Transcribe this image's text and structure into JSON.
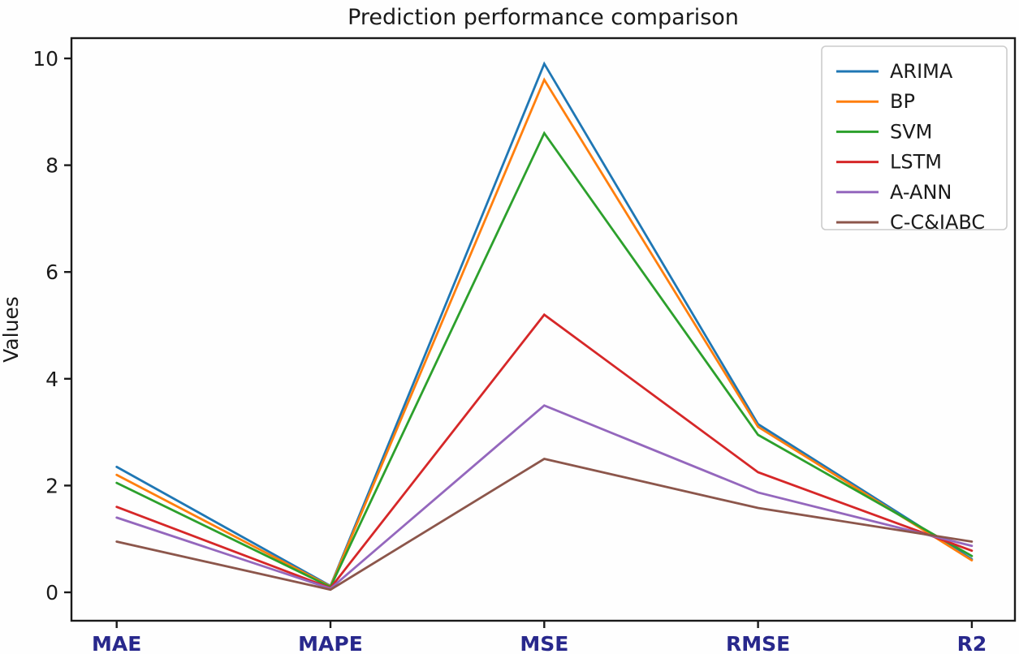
{
  "figure": {
    "title": "Prediction performance comparison",
    "ylabel": "Values"
  },
  "chart_data": {
    "type": "line",
    "title": "Prediction performance comparison",
    "xlabel": "",
    "ylabel": "Values",
    "categories": [
      "MAE",
      "MAPE",
      "MSE",
      "RMSE",
      "R2"
    ],
    "series": [
      {
        "name": "ARIMA",
        "color": "#1f77b4",
        "values": [
          2.35,
          0.12,
          9.9,
          3.15,
          0.62
        ]
      },
      {
        "name": "BP",
        "color": "#ff7f0e",
        "values": [
          2.2,
          0.11,
          9.6,
          3.1,
          0.6
        ]
      },
      {
        "name": "SVM",
        "color": "#2ca02c",
        "values": [
          2.05,
          0.1,
          8.6,
          2.95,
          0.68
        ]
      },
      {
        "name": "LSTM",
        "color": "#d62728",
        "values": [
          1.6,
          0.08,
          5.2,
          2.25,
          0.78
        ]
      },
      {
        "name": "A-ANN",
        "color": "#9467bd",
        "values": [
          1.4,
          0.07,
          3.5,
          1.87,
          0.87
        ]
      },
      {
        "name": "C-C&IABC",
        "color": "#8c564b",
        "values": [
          0.95,
          0.05,
          2.5,
          1.58,
          0.95
        ]
      }
    ],
    "yticks": [
      0,
      2,
      4,
      6,
      8,
      10
    ],
    "ylim": [
      -0.55,
      10.4
    ],
    "grid": false,
    "legend_position": "upper right",
    "colors": {
      "xtick_label": "#28288c",
      "ytick_label": "#1a1a1a",
      "axis": "#1a1a1a",
      "legend_border": "#cccccc",
      "legend_background": "#ffffff"
    }
  }
}
